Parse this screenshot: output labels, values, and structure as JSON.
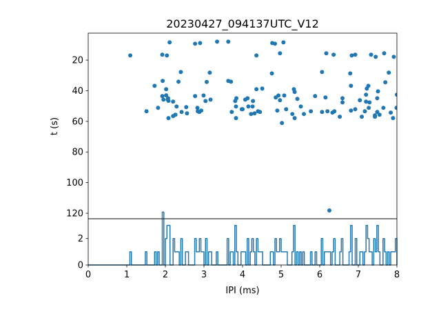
{
  "chart_data": [
    {
      "type": "scatter",
      "title": "20230427_094137UTC_V12",
      "xlabel": "",
      "ylabel": "t (s)",
      "xlim": [
        0,
        8
      ],
      "ylim": [
        123.6,
        2.4
      ],
      "y_inverted": true,
      "yticks": [
        20,
        40,
        60,
        80,
        100,
        120
      ],
      "color": "#1f77b4",
      "points": [
        [
          1.09,
          17.0
        ],
        [
          2.11,
          8.4
        ],
        [
          1.92,
          16.5
        ],
        [
          2.04,
          17.0
        ],
        [
          2.77,
          9.3
        ],
        [
          2.9,
          8.9
        ],
        [
          3.34,
          8.0
        ],
        [
          3.63,
          8.0
        ],
        [
          2.4,
          27.8
        ],
        [
          3.15,
          28.2
        ],
        [
          1.93,
          33.6
        ],
        [
          2.34,
          34.1
        ],
        [
          3.07,
          34.3
        ],
        [
          3.63,
          33.6
        ],
        [
          3.7,
          34.1
        ],
        [
          1.72,
          36.8
        ],
        [
          2.02,
          39.0
        ],
        [
          1.92,
          43.5
        ],
        [
          2.02,
          43.0
        ],
        [
          2.07,
          44.9
        ],
        [
          1.95,
          45.8
        ],
        [
          2.08,
          46.6
        ],
        [
          2.06,
          45.8
        ],
        [
          2.2,
          47.1
        ],
        [
          2.77,
          43.5
        ],
        [
          2.99,
          43.1
        ],
        [
          3.04,
          46.7
        ],
        [
          3.17,
          45.8
        ],
        [
          3.84,
          44.9
        ],
        [
          3.81,
          46.7
        ],
        [
          3.83,
          50.3
        ],
        [
          3.98,
          52.1
        ],
        [
          1.51,
          53.4
        ],
        [
          1.81,
          51.2
        ],
        [
          2.29,
          50.3
        ],
        [
          2.54,
          50.7
        ],
        [
          2.42,
          53.9
        ],
        [
          2.56,
          54.8
        ],
        [
          2.83,
          51.2
        ],
        [
          2.84,
          53.4
        ],
        [
          2.88,
          53.9
        ],
        [
          2.93,
          53.0
        ],
        [
          2.08,
          57.9
        ],
        [
          2.2,
          56.6
        ],
        [
          2.26,
          55.7
        ],
        [
          3.72,
          53.9
        ],
        [
          3.83,
          57.9
        ],
        [
          4.77,
          8.9
        ],
        [
          4.84,
          9.3
        ],
        [
          5.06,
          8.4
        ],
        [
          4.36,
          17.0
        ],
        [
          4.97,
          15.6
        ],
        [
          6.17,
          15.6
        ],
        [
          6.36,
          16.5
        ],
        [
          6.83,
          17.0
        ],
        [
          6.92,
          16.5
        ],
        [
          7.33,
          16.5
        ],
        [
          7.45,
          17.9
        ],
        [
          7.67,
          15.6
        ],
        [
          7.92,
          17.9
        ],
        [
          4.76,
          28.7
        ],
        [
          6.06,
          27.8
        ],
        [
          6.79,
          28.7
        ],
        [
          7.79,
          28.2
        ],
        [
          7.7,
          34.5
        ],
        [
          4.36,
          39.0
        ],
        [
          4.51,
          38.6
        ],
        [
          5.33,
          39.0
        ],
        [
          5.35,
          40.8
        ],
        [
          6.81,
          36.8
        ],
        [
          7.22,
          38.6
        ],
        [
          7.26,
          36.8
        ],
        [
          7.51,
          40.4
        ],
        [
          8.0,
          42.6
        ],
        [
          4.07,
          45.8
        ],
        [
          4.13,
          44.9
        ],
        [
          4.27,
          46.7
        ],
        [
          4.0,
          52.1
        ],
        [
          4.15,
          50.3
        ],
        [
          4.26,
          50.3
        ],
        [
          4.22,
          55.2
        ],
        [
          4.31,
          54.8
        ],
        [
          4.4,
          53.4
        ],
        [
          4.45,
          53.9
        ],
        [
          4.86,
          44.4
        ],
        [
          4.93,
          43.1
        ],
        [
          4.97,
          46.2
        ],
        [
          5.08,
          43.1
        ],
        [
          4.9,
          53.0
        ],
        [
          5.13,
          52.1
        ],
        [
          5.02,
          61.1
        ],
        [
          5.29,
          55.2
        ],
        [
          5.35,
          57.9
        ],
        [
          5.42,
          45.3
        ],
        [
          5.51,
          50.3
        ],
        [
          5.59,
          55.2
        ],
        [
          5.77,
          53.4
        ],
        [
          5.88,
          43.5
        ],
        [
          6.15,
          44.4
        ],
        [
          6.06,
          53.9
        ],
        [
          6.2,
          53.4
        ],
        [
          6.33,
          54.3
        ],
        [
          6.38,
          53.4
        ],
        [
          6.52,
          57.0
        ],
        [
          6.59,
          44.9
        ],
        [
          6.59,
          47.6
        ],
        [
          6.81,
          53.0
        ],
        [
          6.92,
          52.1
        ],
        [
          7.04,
          46.2
        ],
        [
          7.2,
          42.6
        ],
        [
          7.2,
          47.1
        ],
        [
          7.29,
          47.6
        ],
        [
          7.27,
          51.2
        ],
        [
          7.09,
          57.0
        ],
        [
          7.17,
          53.4
        ],
        [
          7.49,
          44.9
        ],
        [
          7.49,
          53.9
        ],
        [
          7.43,
          56.1
        ],
        [
          7.43,
          57.0
        ],
        [
          7.55,
          55.7
        ],
        [
          7.65,
          51.2
        ],
        [
          7.84,
          54.3
        ],
        [
          7.9,
          57.9
        ],
        [
          7.99,
          51.2
        ],
        [
          6.25,
          118.2
        ]
      ]
    },
    {
      "type": "histogram",
      "title": "",
      "xlabel": "IPI (ms)",
      "ylabel": "",
      "xlim": [
        0,
        8
      ],
      "ylim": [
        0,
        3.5
      ],
      "xticks": [
        0,
        1,
        2,
        3,
        4,
        5,
        6,
        7,
        8
      ],
      "yticks": [
        0,
        2
      ],
      "bin_width": 0.04,
      "source": "x values of scatter points",
      "color": "#1f77b4"
    }
  ]
}
